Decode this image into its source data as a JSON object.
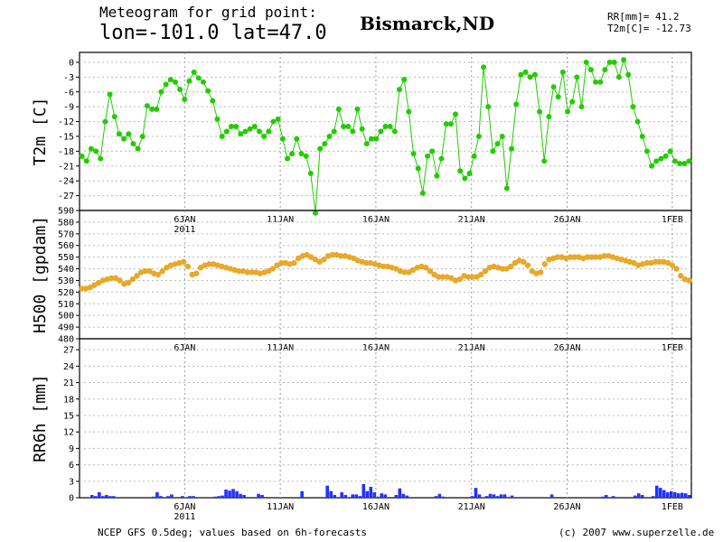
{
  "header": {
    "title_line1": "Meteogram for grid point:",
    "title_line2": "lon=-101.0 lat=47.0",
    "location": "Bismarck,ND",
    "stat_rr": "RR[mm]= 41.2",
    "stat_t2m": "T2m[C]= -12.73"
  },
  "footer": {
    "source": "NCEP GFS 0.5deg; values based on 6h-forecasts",
    "credit": "(c) 2007 www.superzelle.de"
  },
  "chart_data": [
    {
      "type": "line",
      "ylabel": "T2m [C]",
      "ylim": [
        -30,
        2
      ],
      "yticks": [
        0,
        -3,
        -6,
        -9,
        -12,
        -15,
        -18,
        -21,
        -24,
        -27
      ],
      "ytick_labels": [
        "0",
        "-3",
        "-6",
        "-9",
        "-12",
        "-15",
        "-18",
        "-21",
        "-24",
        "-27"
      ],
      "x_range_days": [
        0,
        32
      ],
      "xtick_labels": [
        "6JAN",
        "11JAN",
        "16JAN",
        "21JAN",
        "26JAN",
        "1FEB"
      ],
      "xtick_sublabel": "2011",
      "grid": true,
      "color": "#22cc00",
      "values": [
        -19,
        -20,
        -17.5,
        -18,
        -19.5,
        -12,
        -6.5,
        -11,
        -14.5,
        -15.5,
        -14.5,
        -16.5,
        -17.5,
        -15,
        -8.8,
        -9.5,
        -9.5,
        -6,
        -4.5,
        -3.5,
        -4,
        -5.5,
        -7.5,
        -3.8,
        -2,
        -3.2,
        -4,
        -5.8,
        -7.8,
        -11.5,
        -15,
        -14,
        -13,
        -13,
        -14.5,
        -14,
        -13.5,
        -13,
        -14,
        -15,
        -14,
        -12,
        -11.5,
        -15.5,
        -19.5,
        -18.5,
        -15.5,
        -18.5,
        -19,
        -22.5,
        -30.5,
        -17.5,
        -16.5,
        -15,
        -14,
        -9.5,
        -13,
        -13,
        -14,
        -9.5,
        -13.5,
        -16.5,
        -15.5,
        -15.5,
        -14,
        -13,
        -13,
        -14,
        -5.5,
        -3.5,
        -10,
        -18.5,
        -21.5,
        -26.5,
        -19,
        -18,
        -23,
        -19.5,
        -12.5,
        -12.5,
        -10.5,
        -22,
        -23.5,
        -22.5,
        -19,
        -15,
        -1,
        -9,
        -18,
        -16.5,
        -15,
        -25.5,
        -17.5,
        -8.5,
        -2.5,
        -2,
        -3,
        -2.5,
        -10,
        -20,
        -11,
        -5,
        -7,
        -2,
        -10,
        -8,
        -3,
        -9,
        0,
        -1.5,
        -4,
        -4,
        -1.5,
        0,
        0,
        -3,
        0.5,
        -2.5,
        -9,
        -12,
        -15,
        -18,
        -21,
        -20,
        -19.5,
        -19,
        -18,
        -20,
        -20.5,
        -20.5,
        -20
      ]
    },
    {
      "type": "scatter",
      "ylabel": "H500 [gpdam]",
      "ylim": [
        480,
        590
      ],
      "yticks": [
        480,
        490,
        500,
        510,
        520,
        530,
        540,
        550,
        560,
        570,
        580,
        590
      ],
      "ytick_labels": [
        "480",
        "490",
        "500",
        "510",
        "520",
        "530",
        "540",
        "550",
        "560",
        "570",
        "580",
        "590"
      ],
      "x_range_days": [
        0,
        32
      ],
      "xtick_labels": [
        "6JAN",
        "11JAN",
        "16JAN",
        "21JAN",
        "26JAN",
        "1FEB"
      ],
      "xtick_sublabel": "2011",
      "grid": true,
      "color": "#e8a82a",
      "values": [
        523,
        523,
        524,
        526,
        528,
        530,
        531,
        532,
        532,
        530,
        527,
        528,
        531,
        534,
        537,
        538,
        538,
        536,
        535,
        538,
        541,
        543,
        544,
        545,
        546,
        542,
        535,
        536,
        541,
        543,
        544,
        544,
        543,
        542,
        541,
        540,
        539,
        538,
        538,
        537,
        537,
        537,
        536,
        537,
        538,
        540,
        543,
        545,
        545,
        544,
        545,
        549,
        551,
        552,
        550,
        548,
        546,
        548,
        551,
        552,
        552,
        551,
        551,
        550,
        549,
        547,
        546,
        545,
        545,
        544,
        543,
        542,
        542,
        541,
        540,
        538,
        537,
        537,
        539,
        541,
        542,
        541,
        538,
        535,
        533,
        533,
        533,
        532,
        530,
        531,
        534,
        533,
        533,
        533,
        535,
        538,
        541,
        542,
        541,
        540,
        540,
        542,
        545,
        547,
        546,
        543,
        538,
        536,
        537,
        544,
        548,
        549,
        550,
        550,
        549,
        550,
        550,
        550,
        549,
        550,
        550,
        550,
        550,
        551,
        551,
        550,
        549,
        548,
        547,
        546,
        545,
        543,
        544,
        545,
        545,
        546,
        546,
        546,
        545,
        543,
        540,
        534,
        531,
        530
      ]
    },
    {
      "type": "bar",
      "ylabel": "RR6h [mm]",
      "ylim": [
        0,
        29
      ],
      "yticks": [
        0,
        3,
        6,
        9,
        12,
        15,
        18,
        21,
        24,
        27
      ],
      "ytick_labels": [
        "0",
        "3",
        "6",
        "9",
        "12",
        "15",
        "18",
        "21",
        "24",
        "27"
      ],
      "x_range_days": [
        0,
        32
      ],
      "xtick_labels": [
        "6JAN",
        "11JAN",
        "16JAN",
        "21JAN",
        "26JAN",
        "1FEB"
      ],
      "xtick_sublabel": "2011",
      "grid": true,
      "color": "#2233ff",
      "values": [
        0,
        0,
        0,
        0.5,
        0.3,
        1.0,
        0.3,
        0.5,
        0.3,
        0.3,
        0,
        0,
        0,
        0,
        0,
        0,
        0,
        0,
        0,
        0,
        0.2,
        1.0,
        0.3,
        0,
        0.3,
        0.6,
        0,
        0,
        0.3,
        0,
        0.3,
        0.3,
        0,
        0,
        0,
        0,
        0,
        0.2,
        0.3,
        0.4,
        1.5,
        1.3,
        1.6,
        1.2,
        0.7,
        0.5,
        0,
        0,
        0,
        0.7,
        0.5,
        0,
        0,
        0,
        0,
        0,
        0,
        0,
        0,
        0,
        0,
        1.2,
        0,
        0,
        0,
        0,
        0,
        0,
        2.2,
        1.2,
        0.5,
        0,
        1.0,
        0.5,
        0,
        0.6,
        0.6,
        0.3,
        2.5,
        1.2,
        2.0,
        1.0,
        0.2,
        0.8,
        0.6,
        0,
        0,
        0.5,
        1.7,
        0.7,
        0.4,
        0,
        0,
        0,
        0,
        0,
        0,
        0,
        0.3,
        0.7,
        0.2,
        0,
        0,
        0,
        0,
        0,
        0,
        0,
        0.3,
        1.8,
        0.6,
        0,
        0.3,
        0.7,
        0.6,
        0.3,
        0.6,
        0.6,
        0,
        0.4,
        0,
        0,
        0,
        0,
        0,
        0,
        0,
        0,
        0,
        0,
        0.6,
        0,
        0,
        0,
        0,
        0,
        0,
        0,
        0,
        0,
        0,
        0,
        0,
        0,
        0.2,
        0.5,
        0,
        0.3,
        0,
        0,
        0,
        0,
        0,
        0.4,
        0.8,
        0.5,
        0,
        0,
        0.3,
        2.2,
        1.8,
        1.4,
        1.0,
        1.2,
        1.0,
        0.8,
        0.9,
        0.8,
        0.5
      ]
    }
  ]
}
